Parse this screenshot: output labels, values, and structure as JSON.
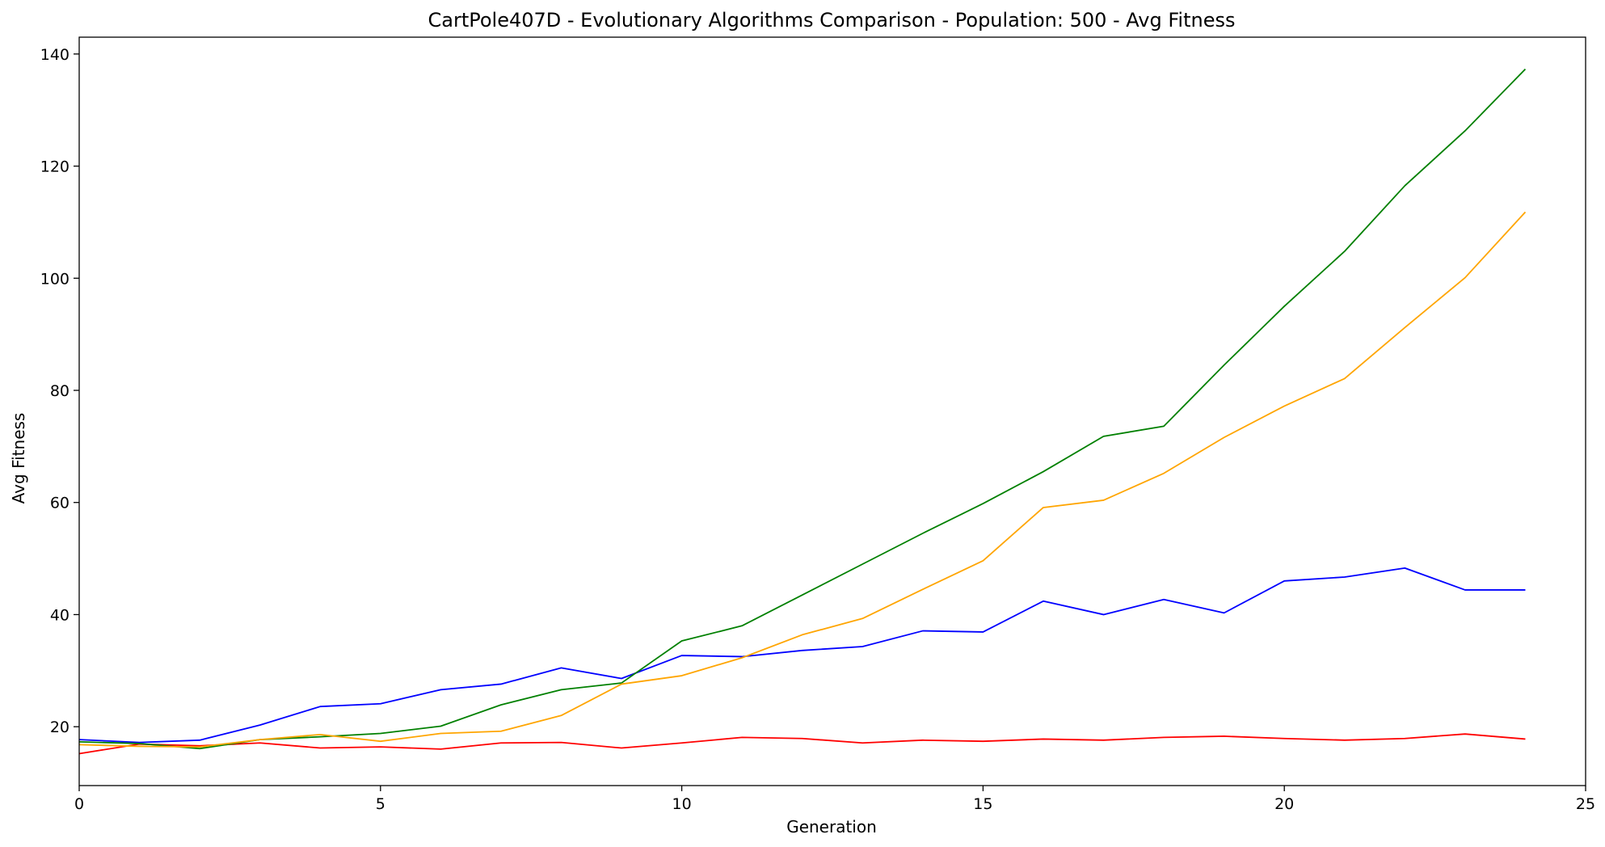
{
  "chart_data": {
    "type": "line",
    "title": "CartPole407D - Evolutionary Algorithms Comparison - Population: 500 - Avg Fitness",
    "xlabel": "Generation",
    "ylabel": "Avg Fitness",
    "xlim": [
      0,
      25
    ],
    "ylim": [
      9.5,
      143
    ],
    "xticks": [
      0,
      5,
      10,
      15,
      20,
      25
    ],
    "yticks": [
      20,
      40,
      60,
      80,
      100,
      120,
      140
    ],
    "grid": false,
    "legend": "none",
    "x": [
      0,
      1,
      2,
      3,
      4,
      5,
      6,
      7,
      8,
      9,
      10,
      11,
      12,
      13,
      14,
      15,
      16,
      17,
      18,
      19,
      20,
      21,
      22,
      23,
      24
    ],
    "series": [
      {
        "color": "#0000ff",
        "values": [
          17.7,
          17.2,
          17.6,
          20.3,
          23.6,
          24.1,
          26.6,
          27.6,
          30.5,
          28.6,
          32.7,
          32.5,
          33.6,
          34.3,
          37.1,
          36.9,
          42.4,
          40.0,
          42.7,
          40.3,
          46.0,
          46.7,
          48.3,
          44.4,
          44.4
        ]
      },
      {
        "color": "#ff0000",
        "values": [
          15.2,
          16.9,
          16.6,
          17.1,
          16.2,
          16.4,
          16.0,
          17.1,
          17.2,
          16.2,
          17.1,
          18.1,
          17.9,
          17.1,
          17.6,
          17.4,
          17.8,
          17.6,
          18.1,
          18.3,
          17.9,
          17.6,
          17.9,
          18.7,
          17.8
        ]
      },
      {
        "color": "#008000",
        "values": [
          17.3,
          17.0,
          16.1,
          17.7,
          18.2,
          18.8,
          20.1,
          23.9,
          26.6,
          27.8,
          35.3,
          38.0,
          43.5,
          49.0,
          54.5,
          59.8,
          65.5,
          71.8,
          73.6,
          84.5,
          95.0,
          104.8,
          116.5,
          126.3,
          137.3
        ]
      },
      {
        "color": "#ffa500",
        "values": [
          16.8,
          16.5,
          16.4,
          17.7,
          18.6,
          17.4,
          18.8,
          19.2,
          22.0,
          27.6,
          29.1,
          32.3,
          36.4,
          39.3,
          44.5,
          49.6,
          59.1,
          60.4,
          65.2,
          71.6,
          77.2,
          82.1,
          91.2,
          100.1,
          111.8
        ]
      }
    ]
  }
}
